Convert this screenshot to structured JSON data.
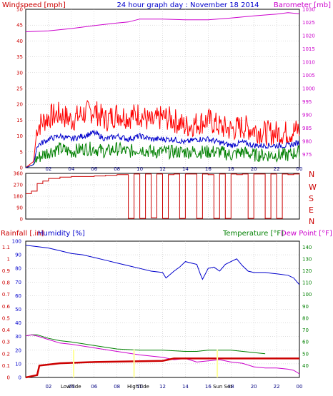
{
  "header": {
    "wind_label": "Windspeed [mph]",
    "title": "24 hour graph day : November 18 2014",
    "baro_label": "Barometer [mb]"
  },
  "lower_header": {
    "rain_label": "Rainfall [.in]",
    "humidity_label": "Humidity [%]",
    "temp_label": "Temperature [°F]",
    "dew_label": "Dew Point [°F]"
  },
  "compass": [
    "N",
    "W",
    "S",
    "E",
    "N"
  ],
  "x_ticks": [
    "02",
    "04",
    "06",
    "08",
    "10",
    "12",
    "14",
    "16",
    "18",
    "20",
    "22",
    "00"
  ],
  "annotations": {
    "lowtide": "LowTide",
    "hightide": "HighTide",
    "sunset": "Sun Set"
  },
  "colors": {
    "wind_gust": "#ff0000",
    "wind_avg": "#0000cc",
    "wind_min": "#008000",
    "barometer": "#cc00cc",
    "direction": "#cc0000",
    "humidity": "#0000cc",
    "temperature": "#008000",
    "dewpoint": "#cc00cc",
    "rain": "#cc0000",
    "grid": "#bbbbbb",
    "tide_marker": "#ffff99"
  },
  "chart_data": [
    {
      "type": "line",
      "name": "wind-and-barometer",
      "x_range": [
        0,
        24
      ],
      "left_axis": {
        "label": "Windspeed [mph]",
        "ylim": [
          0,
          50
        ],
        "ticks": [
          0,
          5,
          10,
          15,
          20,
          25,
          30,
          35,
          40,
          45,
          50
        ]
      },
      "right_axis": {
        "label": "Barometer [mb]",
        "ylim": [
          970,
          1030
        ],
        "ticks": [
          975,
          980,
          985,
          990,
          995,
          1000,
          1005,
          1010,
          1015,
          1020,
          1025,
          1030
        ]
      },
      "grid": true,
      "series": [
        {
          "name": "Barometer",
          "axis": "right",
          "x": [
            0,
            2,
            4,
            6,
            8,
            9,
            10,
            12,
            14,
            16,
            18,
            20,
            22,
            23,
            24
          ],
          "y": [
            1021.5,
            1021.8,
            1022.7,
            1023.8,
            1024.8,
            1025.2,
            1026.3,
            1026.3,
            1026.0,
            1026.0,
            1026.7,
            1027.5,
            1028.2,
            1028.7,
            1028.3
          ]
        },
        {
          "name": "gust",
          "axis": "left",
          "x": [
            0,
            0.7,
            1,
            2,
            3,
            4,
            5,
            6,
            7,
            8,
            9,
            10,
            11,
            12,
            13,
            14,
            15,
            16,
            17,
            18,
            19,
            20,
            21,
            22,
            23,
            24
          ],
          "y": [
            0,
            2,
            13,
            16,
            17,
            15,
            17,
            18,
            15,
            17,
            16,
            17,
            14,
            16,
            15,
            13,
            14,
            15,
            13,
            12,
            13,
            12,
            11,
            11,
            11,
            12
          ]
        },
        {
          "name": "average",
          "axis": "left",
          "x": [
            0,
            0.7,
            1,
            2,
            3,
            4,
            5,
            6,
            7,
            8,
            9,
            10,
            11,
            12,
            13,
            14,
            15,
            16,
            17,
            18,
            19,
            20,
            21,
            22,
            23,
            24
          ],
          "y": [
            0,
            1,
            7,
            9,
            10,
            9,
            10,
            11,
            9,
            10,
            9,
            10,
            9,
            9,
            9,
            8,
            9,
            9,
            8,
            7,
            8,
            7,
            7,
            7,
            7,
            8
          ]
        },
        {
          "name": "minimum",
          "axis": "left",
          "x": [
            0,
            0.7,
            1,
            2,
            3,
            4,
            5,
            6,
            7,
            8,
            9,
            10,
            11,
            12,
            13,
            14,
            15,
            16,
            17,
            18,
            19,
            20,
            21,
            22,
            23,
            24
          ],
          "y": [
            0,
            1,
            3,
            5,
            6,
            5,
            6,
            6,
            5,
            6,
            5,
            6,
            5,
            5,
            5,
            5,
            5,
            5,
            5,
            4,
            5,
            4,
            4,
            4,
            4,
            5
          ]
        }
      ]
    },
    {
      "type": "line",
      "name": "wind-direction",
      "x_range": [
        0,
        24
      ],
      "ylim": [
        0,
        360
      ],
      "ticks": [
        0,
        90,
        180,
        270,
        360
      ],
      "grid": true,
      "series": [
        {
          "name": "direction",
          "x": [
            0,
            0.5,
            1,
            1.5,
            2,
            3,
            4,
            6,
            7,
            8,
            8.5,
            9,
            9.5,
            10,
            10.5,
            11,
            11.5,
            12,
            12.5,
            13,
            13.5,
            14,
            14.5,
            15,
            15.5,
            16,
            16.5,
            17,
            17.5,
            18,
            18.5,
            19,
            19.5,
            20,
            20.5,
            21,
            21.5,
            22,
            22.5,
            23,
            23.5,
            24
          ],
          "y": [
            200,
            220,
            280,
            300,
            320,
            330,
            335,
            340,
            345,
            350,
            350,
            5,
            355,
            5,
            355,
            10,
            355,
            5,
            350,
            355,
            5,
            355,
            355,
            5,
            355,
            350,
            5,
            355,
            5,
            355,
            350,
            355,
            5,
            355,
            355,
            5,
            355,
            5,
            355,
            350,
            355,
            350
          ]
        }
      ]
    },
    {
      "type": "line",
      "name": "humidity-temperature-rain",
      "x_range": [
        0,
        24
      ],
      "left_axis": {
        "label": "Humidity [%]",
        "ylim": [
          0,
          100
        ],
        "ticks": [
          0,
          10,
          20,
          30,
          40,
          50,
          60,
          70,
          80,
          90,
          100
        ]
      },
      "rain_axis": {
        "label": "Rainfall [.in]",
        "ylim": [
          0,
          1.15
        ],
        "ticks": [
          0,
          0.1,
          0.2,
          0.3,
          0.4,
          0.5,
          0.6,
          0.7,
          0.8,
          0.9,
          1,
          1.1
        ]
      },
      "right_axis": {
        "label": "Temperature [°F]",
        "ylim": [
          30,
          145
        ],
        "ticks": [
          40,
          50,
          60,
          70,
          80,
          90,
          100,
          110,
          120,
          130,
          140
        ]
      },
      "grid": true,
      "series": [
        {
          "name": "Humidity",
          "axis": "left",
          "x": [
            0,
            1,
            2,
            3,
            4,
            5,
            6,
            7,
            8,
            9,
            10,
            11,
            12,
            12.3,
            13,
            13.5,
            14,
            14.5,
            15,
            15.3,
            15.5,
            16,
            16.5,
            17,
            17.5,
            18,
            18.5,
            19,
            19.5,
            20,
            21,
            22,
            23,
            23.5,
            24
          ],
          "y": [
            97,
            96,
            95,
            93,
            91,
            90,
            88,
            86,
            84,
            82,
            80,
            78,
            77,
            73,
            78,
            81,
            85,
            84,
            83,
            76,
            72,
            80,
            81,
            78,
            83,
            85,
            87,
            82,
            78,
            77,
            77,
            76,
            75,
            73,
            68
          ]
        },
        {
          "name": "Temperature",
          "axis": "right",
          "x": [
            0,
            0.5,
            1,
            2,
            3,
            4,
            6,
            8,
            10,
            12,
            14,
            15,
            16,
            17,
            18,
            20,
            21
          ],
          "y": [
            65,
            66,
            66,
            63,
            61,
            60,
            57,
            54,
            53,
            53,
            52,
            52,
            53,
            53,
            53,
            51,
            50
          ]
        },
        {
          "name": "Dew Point",
          "axis": "right",
          "x": [
            0,
            0.5,
            1,
            2,
            3,
            4,
            6,
            8,
            10,
            12,
            13,
            14,
            15,
            16,
            17,
            18,
            19,
            20,
            21,
            22,
            23,
            23.5,
            24
          ],
          "y": [
            65,
            66,
            65,
            62,
            59,
            58,
            55,
            52,
            49,
            47,
            45,
            46,
            43,
            44,
            45,
            43,
            42,
            39,
            38,
            38,
            37,
            36,
            33
          ]
        },
        {
          "name": "Rainfall",
          "axis": "rain",
          "x": [
            0,
            0.5,
            1,
            1.2,
            3,
            6,
            12,
            13,
            14,
            24
          ],
          "y": [
            0,
            0.01,
            0.02,
            0.1,
            0.12,
            0.13,
            0.14,
            0.16,
            0.16,
            0.16
          ]
        }
      ]
    }
  ]
}
